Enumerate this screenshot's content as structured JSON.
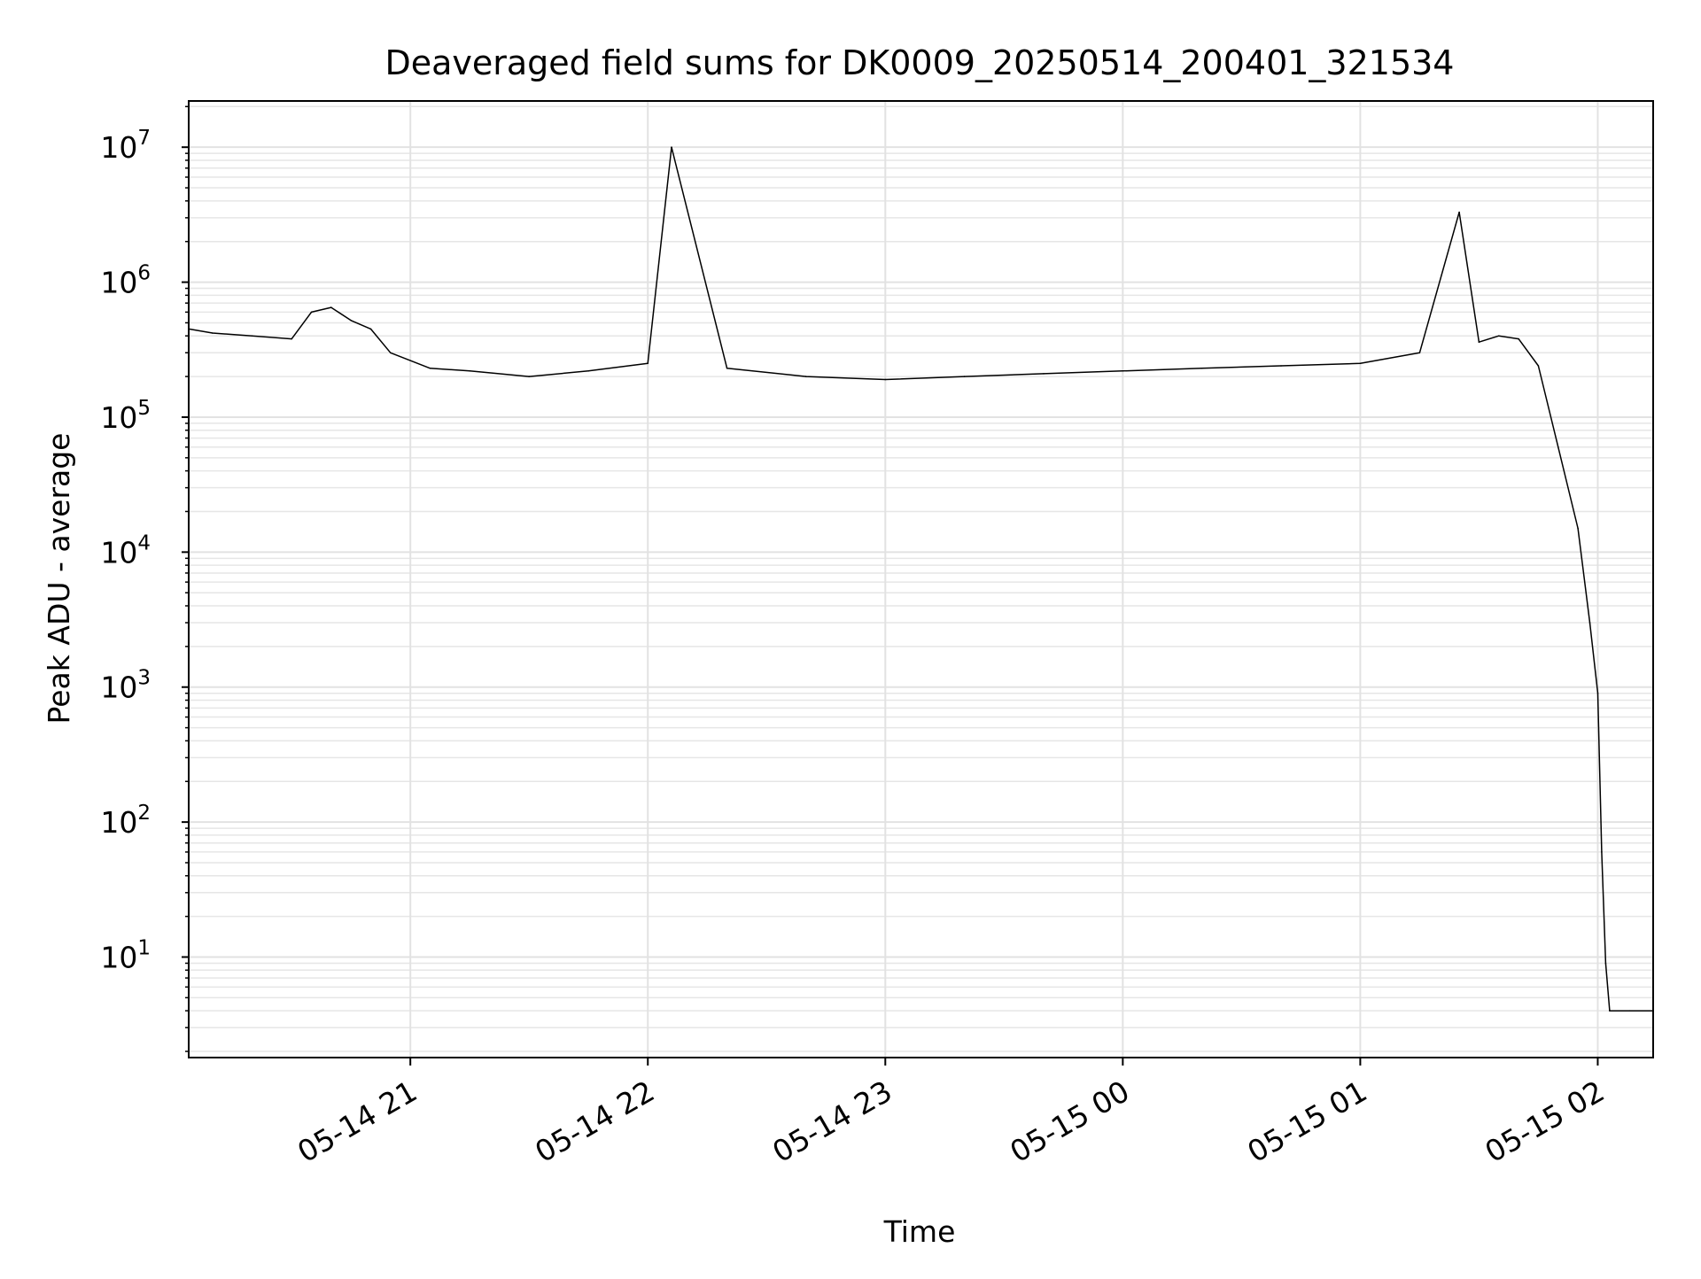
{
  "chart_data": {
    "type": "line",
    "title": "Deaveraged field sums for DK0009_20250514_200401_321534",
    "xlabel": "Time",
    "ylabel": "Peak ADU - average",
    "y_scale": "log",
    "ylim": [
      1.8,
      22000000
    ],
    "xlim": [
      "2025-05-14 20:04",
      "2025-05-15 02:14"
    ],
    "grid": true,
    "grid_minor": true,
    "line_color": "#000000",
    "x_ticks": [
      {
        "value": "2025-05-14 21:00",
        "label": "05-14 21"
      },
      {
        "value": "2025-05-14 22:00",
        "label": "05-14 22"
      },
      {
        "value": "2025-05-14 23:00",
        "label": "05-14 23"
      },
      {
        "value": "2025-05-15 00:00",
        "label": "05-15 00"
      },
      {
        "value": "2025-05-15 01:00",
        "label": "05-15 01"
      },
      {
        "value": "2025-05-15 02:00",
        "label": "05-15 02"
      }
    ],
    "y_ticks": [
      {
        "value": 10,
        "base": "10",
        "exp": "1"
      },
      {
        "value": 100,
        "base": "10",
        "exp": "2"
      },
      {
        "value": 1000,
        "base": "10",
        "exp": "3"
      },
      {
        "value": 10000,
        "base": "10",
        "exp": "4"
      },
      {
        "value": 100000,
        "base": "10",
        "exp": "5"
      },
      {
        "value": 1000000,
        "base": "10",
        "exp": "6"
      },
      {
        "value": 10000000,
        "base": "10",
        "exp": "7"
      }
    ],
    "series": [
      {
        "x": [
          "2025-05-14 20:04",
          "2025-05-14 20:10",
          "2025-05-14 20:20",
          "2025-05-14 20:30",
          "2025-05-14 20:35",
          "2025-05-14 20:40",
          "2025-05-14 20:45",
          "2025-05-14 20:50",
          "2025-05-14 20:55",
          "2025-05-14 21:05",
          "2025-05-14 21:15",
          "2025-05-14 21:30",
          "2025-05-14 21:45",
          "2025-05-14 22:00",
          "2025-05-14 22:06",
          "2025-05-14 22:20",
          "2025-05-14 22:40",
          "2025-05-14 23:00",
          "2025-05-14 23:20",
          "2025-05-14 23:40",
          "2025-05-15 00:00",
          "2025-05-15 00:20",
          "2025-05-15 00:40",
          "2025-05-15 01:00",
          "2025-05-15 01:15",
          "2025-05-15 01:25",
          "2025-05-15 01:30",
          "2025-05-15 01:35",
          "2025-05-15 01:40",
          "2025-05-15 01:45",
          "2025-05-15 01:50",
          "2025-05-15 01:55",
          "2025-05-15 01:58",
          "2025-05-15 02:00",
          "2025-05-15 02:01",
          "2025-05-15 02:02",
          "2025-05-15 02:03",
          "2025-05-15 02:08",
          "2025-05-15 02:14"
        ],
        "y": [
          450000,
          420000,
          400000,
          380000,
          600000,
          650000,
          520000,
          450000,
          300000,
          230000,
          220000,
          200000,
          220000,
          250000,
          10000000,
          230000,
          200000,
          190000,
          200000,
          210000,
          220000,
          230000,
          240000,
          250000,
          300000,
          3300000,
          360000,
          400000,
          380000,
          240000,
          60000,
          15000,
          3000,
          900,
          60,
          9,
          4,
          4,
          4
        ]
      }
    ]
  }
}
